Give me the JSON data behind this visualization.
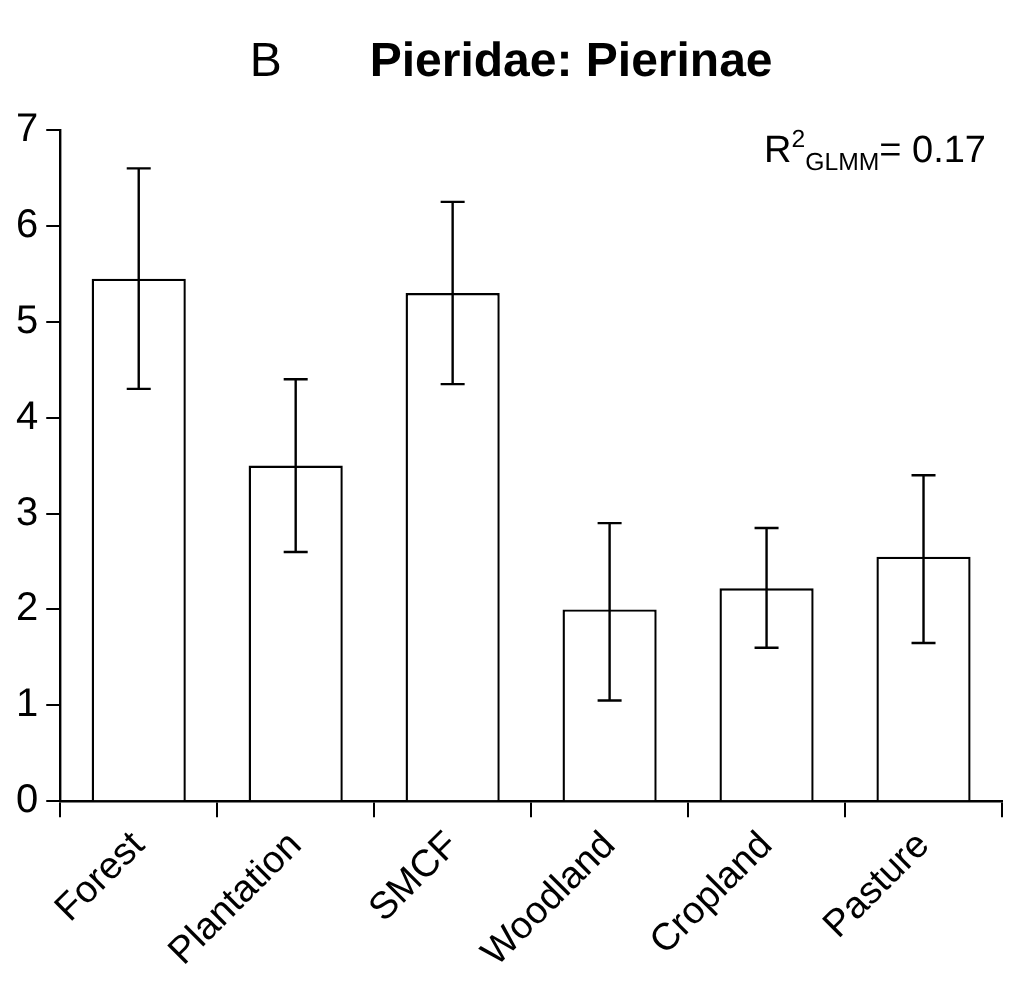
{
  "chart_data": {
    "type": "bar",
    "title": "Pieridae: Pierinae",
    "annotations": [
      "B",
      "R$^{2}$$_{GLMM}$= 0.17"
    ],
    "categories": [
      "Forest",
      "Plantation",
      "SMCF",
      "Woodland",
      "Cropland",
      "Pasture"
    ],
    "values": [
      5.45,
      3.5,
      5.3,
      2.0,
      2.22,
      2.55
    ],
    "errors": [
      [
        4.3,
        6.6
      ],
      [
        2.6,
        4.4
      ],
      [
        4.35,
        6.25
      ],
      [
        1.05,
        2.9
      ],
      [
        1.6,
        2.85
      ],
      [
        1.65,
        3.4
      ]
    ],
    "color": "#ffffff",
    "ylim": [
      0,
      7
    ],
    "yticks": [
      0,
      1,
      2,
      3,
      4,
      5,
      6,
      7
    ],
    "grid": false,
    "legend": false
  }
}
